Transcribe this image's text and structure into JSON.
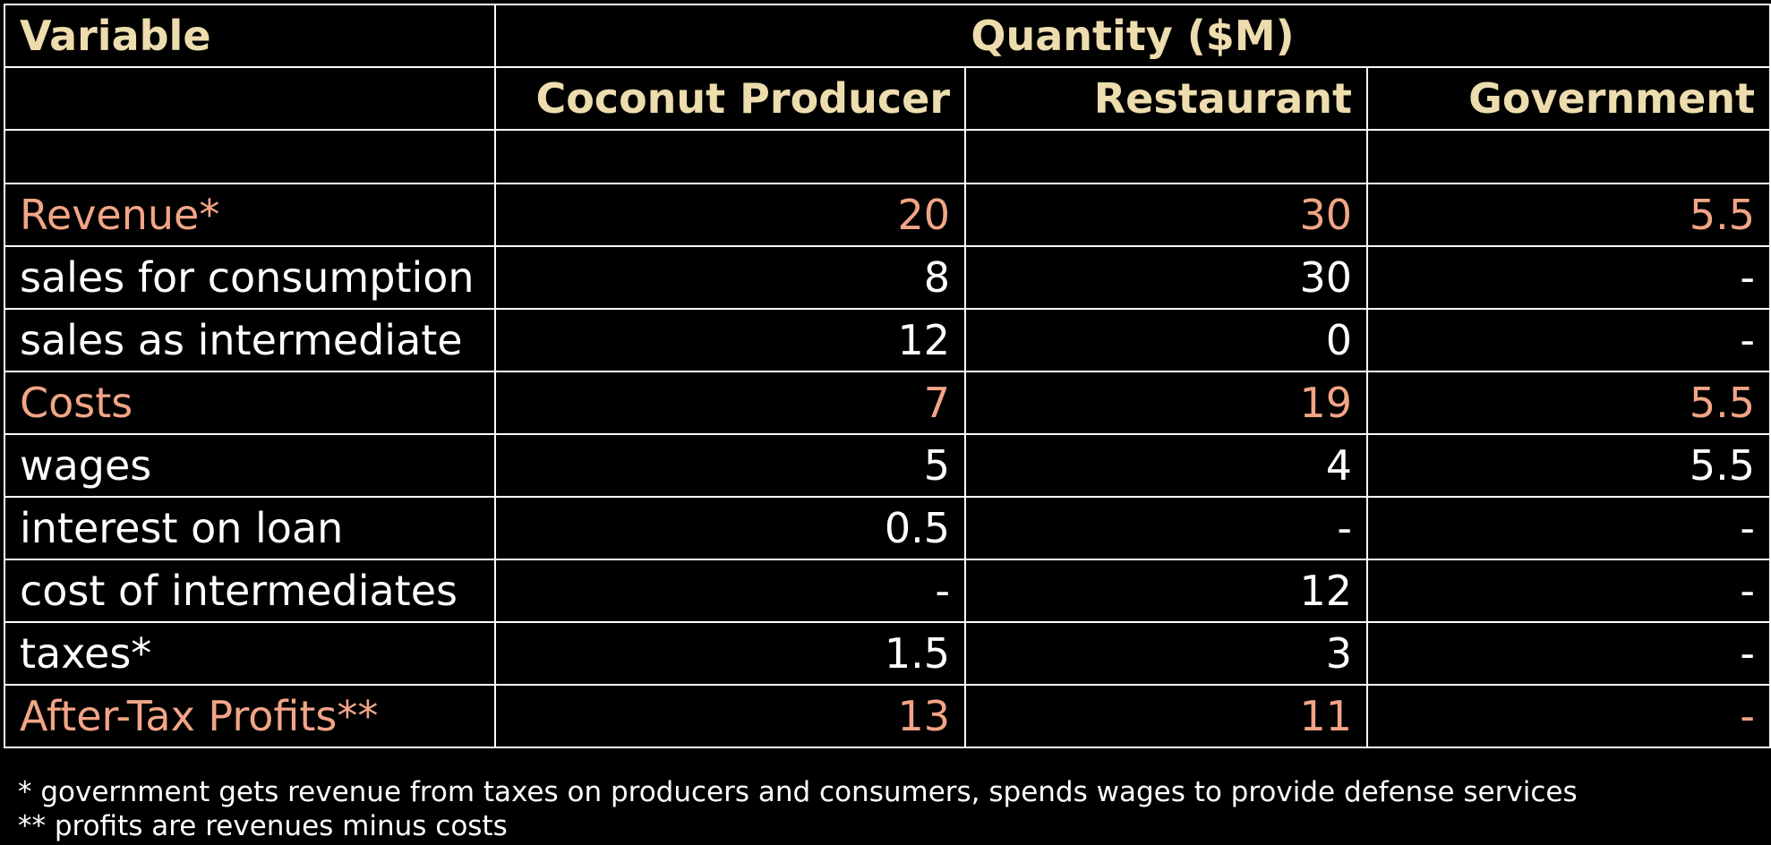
{
  "colors": {
    "background": "#000000",
    "header_text": "#eddcad",
    "highlight_text": "#f2a586",
    "body_text": "#ffffff",
    "grid": "#ffffff"
  },
  "header": {
    "variable": "Variable",
    "quantity": "Quantity ($M)",
    "columns": [
      "Coconut Producer",
      "Restaurant",
      "Government"
    ]
  },
  "rows": [
    {
      "label": "Revenue*",
      "values": [
        "20",
        "30",
        "5.5"
      ],
      "highlight": true
    },
    {
      "label": "sales for consumption",
      "values": [
        "8",
        "30",
        "-"
      ],
      "highlight": false
    },
    {
      "label": "sales as intermediate",
      "values": [
        "12",
        "0",
        "-"
      ],
      "highlight": false
    },
    {
      "label": "Costs",
      "values": [
        "7",
        "19",
        "5.5"
      ],
      "highlight": true
    },
    {
      "label": "wages",
      "values": [
        "5",
        "4",
        "5.5"
      ],
      "highlight": false
    },
    {
      "label": "interest on loan",
      "values": [
        "0.5",
        "-",
        "-"
      ],
      "highlight": false
    },
    {
      "label": "cost of intermediates",
      "values": [
        "-",
        "12",
        "-"
      ],
      "highlight": false
    },
    {
      "label": "taxes*",
      "values": [
        "1.5",
        "3",
        "-"
      ],
      "highlight": false
    },
    {
      "label": "After-Tax Profits**",
      "values": [
        "13",
        "11",
        "-"
      ],
      "highlight": true
    }
  ],
  "footnotes": [
    "* government gets revenue from taxes on producers and consumers, spends wages to provide defense services",
    "** profits are revenues minus costs"
  ]
}
